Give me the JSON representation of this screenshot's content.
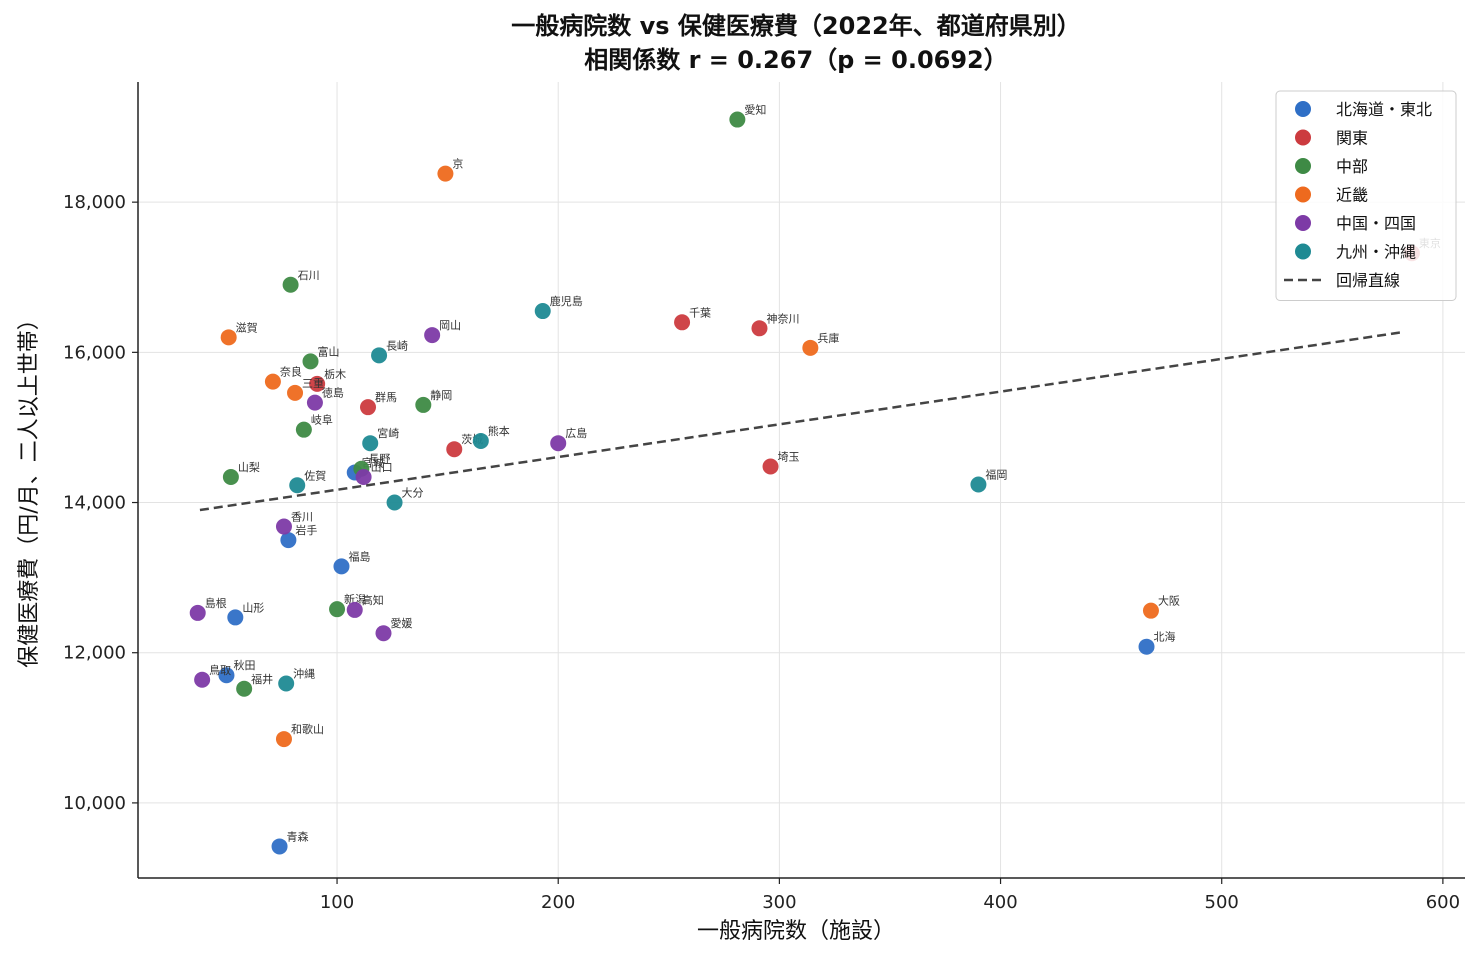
{
  "chart_data": {
    "type": "scatter",
    "title": "一般病院数 vs 保健医療費（2022年、都道府県別）",
    "subtitle": "相関係数 r = 0.267（p = 0.0692）",
    "xlabel": "一般病院数（施設）",
    "ylabel": "保健医療費（円/月、二人以上世帯）",
    "xlim": [
      10,
      610
    ],
    "ylim": [
      9000,
      19600
    ],
    "xticks": [
      100,
      200,
      300,
      400,
      500,
      600
    ],
    "xtick_labels": [
      "100",
      "200",
      "300",
      "400",
      "500",
      "600"
    ],
    "yticks": [
      10000,
      12000,
      14000,
      16000,
      18000
    ],
    "ytick_labels": [
      "10,000",
      "12,000",
      "14,000",
      "16,000",
      "18,000"
    ],
    "grid": true,
    "legend_position": "top-right",
    "regression": {
      "label": "回帰直線",
      "x": [
        38,
        582
      ],
      "y": [
        13900,
        16270
      ],
      "color": "#444444"
    },
    "series": [
      {
        "name": "北海道・東北",
        "color": "#2f6fc6",
        "points": [
          {
            "label": "北海",
            "x": 466,
            "y": 12080
          },
          {
            "label": "青森",
            "x": 74,
            "y": 9420
          },
          {
            "label": "岩手",
            "x": 78,
            "y": 13500
          },
          {
            "label": "秋田",
            "x": 50,
            "y": 11700
          },
          {
            "label": "山形",
            "x": 54,
            "y": 12470
          },
          {
            "label": "福島",
            "x": 102,
            "y": 13150
          },
          {
            "label": "宮城",
            "x": 108,
            "y": 14400
          }
        ]
      },
      {
        "name": "関東",
        "color": "#cc3b3f",
        "points": [
          {
            "label": "千葉",
            "x": 256,
            "y": 16400
          },
          {
            "label": "神奈川",
            "x": 291,
            "y": 16320
          },
          {
            "label": "埼玉",
            "x": 296,
            "y": 14480
          },
          {
            "label": "群馬",
            "x": 114,
            "y": 15270
          },
          {
            "label": "栃木",
            "x": 91,
            "y": 15580
          },
          {
            "label": "茨城",
            "x": 153,
            "y": 14710
          },
          {
            "label": "東京",
            "x": 586,
            "y": 17320
          }
        ]
      },
      {
        "name": "中部",
        "color": "#3e8a45",
        "points": [
          {
            "label": "愛知",
            "x": 281,
            "y": 19100
          },
          {
            "label": "石川",
            "x": 79,
            "y": 16900
          },
          {
            "label": "富山",
            "x": 88,
            "y": 15880
          },
          {
            "label": "静岡",
            "x": 139,
            "y": 15300
          },
          {
            "label": "岐阜",
            "x": 85,
            "y": 14970
          },
          {
            "label": "山梨",
            "x": 52,
            "y": 14340
          },
          {
            "label": "長野",
            "x": 111,
            "y": 14450
          },
          {
            "label": "新潟",
            "x": 100,
            "y": 12580
          },
          {
            "label": "福井",
            "x": 58,
            "y": 11520
          }
        ]
      },
      {
        "name": "近畿",
        "color": "#ee6a1e",
        "points": [
          {
            "label": "京",
            "x": 149,
            "y": 18380
          },
          {
            "label": "滋賀",
            "x": 51,
            "y": 16200
          },
          {
            "label": "兵庫",
            "x": 314,
            "y": 16060
          },
          {
            "label": "奈良",
            "x": 71,
            "y": 15610
          },
          {
            "label": "三重",
            "x": 81,
            "y": 15460
          },
          {
            "label": "大阪",
            "x": 468,
            "y": 12560
          },
          {
            "label": "和歌山",
            "x": 76,
            "y": 10850
          }
        ]
      },
      {
        "name": "中国・四国",
        "color": "#7d3aa6",
        "points": [
          {
            "label": "岡山",
            "x": 143,
            "y": 16230
          },
          {
            "label": "徳島",
            "x": 90,
            "y": 15330
          },
          {
            "label": "広島",
            "x": 200,
            "y": 14790
          },
          {
            "label": "山口",
            "x": 112,
            "y": 14340
          },
          {
            "label": "香川",
            "x": 76,
            "y": 13680
          },
          {
            "label": "島根",
            "x": 37,
            "y": 12530
          },
          {
            "label": "高知",
            "x": 108,
            "y": 12570
          },
          {
            "label": "愛媛",
            "x": 121,
            "y": 12260
          },
          {
            "label": "鳥取",
            "x": 39,
            "y": 11640
          }
        ]
      },
      {
        "name": "九州・沖縄",
        "color": "#1f8a93",
        "points": [
          {
            "label": "鹿児島",
            "x": 193,
            "y": 16550
          },
          {
            "label": "長崎",
            "x": 119,
            "y": 15960
          },
          {
            "label": "熊本",
            "x": 165,
            "y": 14820
          },
          {
            "label": "宮崎",
            "x": 115,
            "y": 14790
          },
          {
            "label": "佐賀",
            "x": 82,
            "y": 14230
          },
          {
            "label": "大分",
            "x": 126,
            "y": 14000
          },
          {
            "label": "福岡",
            "x": 390,
            "y": 14240
          },
          {
            "label": "沖縄",
            "x": 77,
            "y": 11590
          }
        ]
      }
    ]
  }
}
